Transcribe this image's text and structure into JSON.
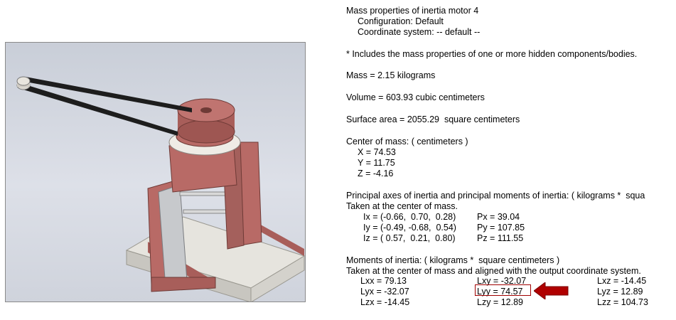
{
  "report": {
    "title": "Mass properties of inertia motor 4",
    "configuration": "Configuration: Default",
    "coordinate_system": "Coordinate system: -- default --",
    "hidden_note": "* Includes the mass properties of one or more hidden components/bodies.",
    "mass": "Mass = 2.15 kilograms",
    "volume": "Volume = 603.93 cubic centimeters",
    "surface_area": "Surface area = 2055.29  square centimeters",
    "com_header": "Center of mass: ( centimeters )",
    "com_x": "X = 74.53",
    "com_y": "Y = 11.75",
    "com_z": "Z = -4.16",
    "principal_header": "Principal axes of inertia and principal moments of inertia: ( kilograms *  squa",
    "principal_sub": "Taken at the center of mass.",
    "ix": "Ix = (-0.66,  0.70,  0.28)",
    "iy": "Iy = (-0.49, -0.68,  0.54)",
    "iz": "Iz = ( 0.57,  0.21,  0.80)",
    "px": "Px = 39.04",
    "py": "Py = 107.85",
    "pz": "Pz = 111.55",
    "moments_header": "Moments of inertia: ( kilograms *  square centimeters )",
    "moments_sub": "Taken at the center of mass and aligned with the output coordinate system.",
    "lxx": "Lxx = 79.13",
    "lxy": "Lxy = -32.07",
    "lxz": "Lxz = -14.45",
    "lyx": "Lyx = -32.07",
    "lyy": "Lyy = 74.57",
    "lyz": "Lyz = 12.89",
    "lzx": "Lzx = -14.45",
    "lzy": "Lzy = 12.89",
    "lzz": "Lzz = 104.73"
  },
  "colors": {
    "part": "#b86a66",
    "belt": "#202020",
    "base": "#e4e2dc",
    "highlight": "#a00000"
  }
}
